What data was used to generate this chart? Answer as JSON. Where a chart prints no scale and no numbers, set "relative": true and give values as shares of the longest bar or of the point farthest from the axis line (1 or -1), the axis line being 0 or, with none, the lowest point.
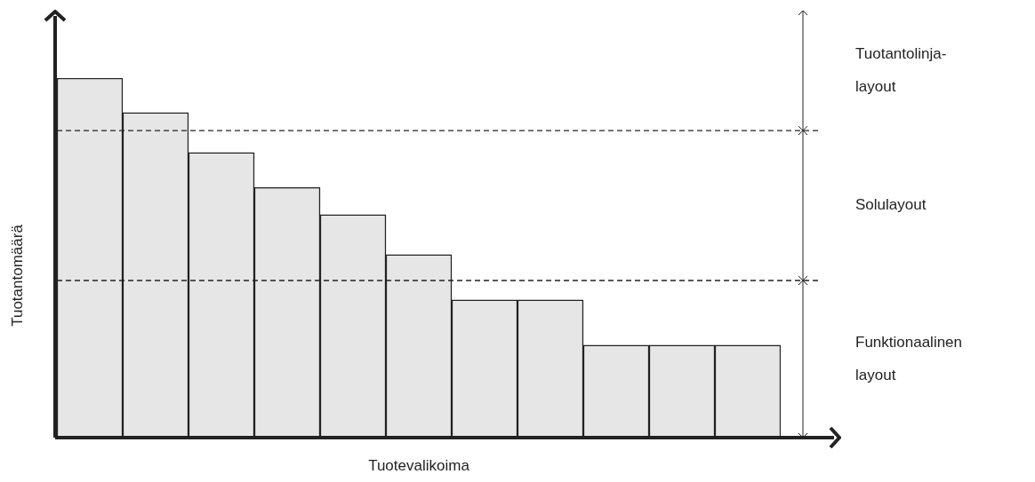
{
  "chart_data": {
    "type": "bar",
    "relative": true,
    "xlabel": "Tuotevalikoima",
    "ylabel": "Tuotantomäärä",
    "categories": [
      null,
      null,
      null,
      null,
      null,
      null,
      null,
      null,
      null,
      null,
      null
    ],
    "values": [
      1,
      0.904,
      0.793,
      0.696,
      0.62,
      0.509,
      0.383,
      0.383,
      0.257,
      0.257,
      0.257
    ],
    "color": "#e6e6e6",
    "ref_lines": [
      {
        "axis": "y",
        "value": 0.854,
        "line_style": "dashed",
        "color": "#222222"
      },
      {
        "axis": "y",
        "value": 0.437,
        "line_style": "dashed",
        "color": "#222222"
      }
    ],
    "annotations": [
      "Tuotantolinja-layout",
      "Solulayout",
      "Funktionaalinen layout"
    ],
    "legend": false
  }
}
